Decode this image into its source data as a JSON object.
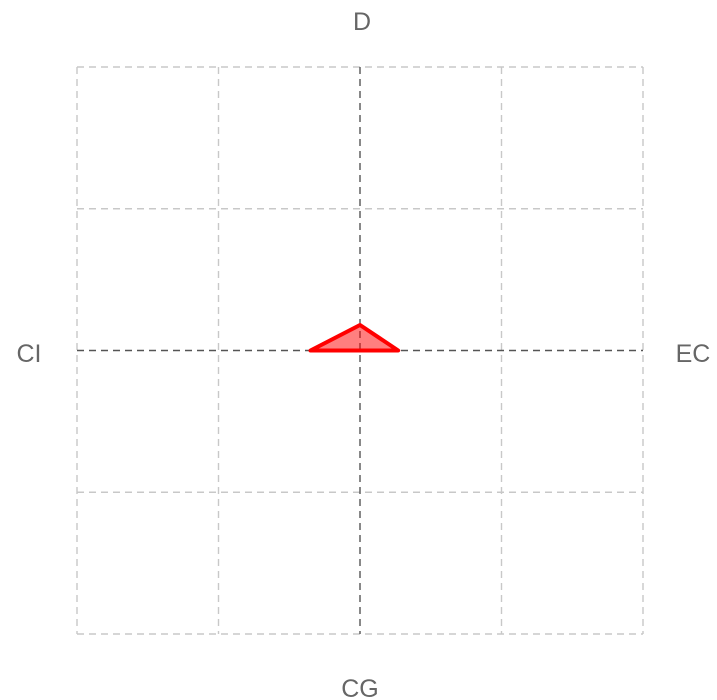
{
  "chart_data": {
    "type": "scatter",
    "title": "",
    "axis_labels": {
      "top": "D",
      "bottom": "CG",
      "left": "CI",
      "right": "EC"
    },
    "xlim": [
      -2,
      2
    ],
    "ylim": [
      -2,
      2
    ],
    "grid": true,
    "grid_divisions": 4,
    "series": [
      {
        "type": "polygon",
        "color": "#ff0000",
        "fill": "rgba(255,0,0,0.5)",
        "points": [
          {
            "x": -0.35,
            "y": 0
          },
          {
            "x": 0,
            "y": 0.18
          },
          {
            "x": 0.27,
            "y": 0
          }
        ]
      }
    ]
  }
}
